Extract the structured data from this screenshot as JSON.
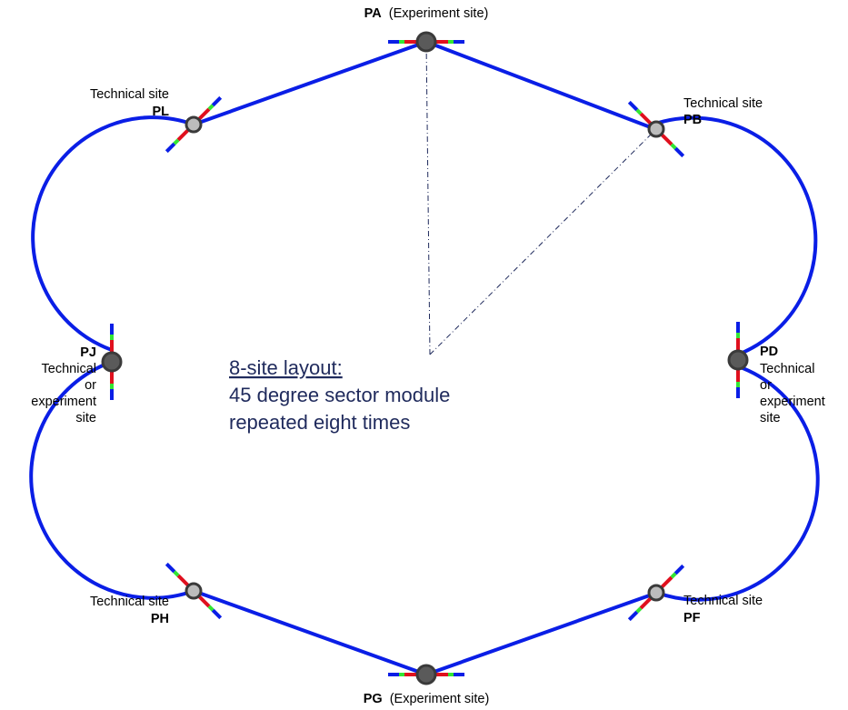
{
  "colors": {
    "ring": "#0a1ee6",
    "section_red": "#e0101e",
    "section_green": "#33e633",
    "major_site_fill": "#5a5a5a",
    "minor_site_fill": "#bcbcbc",
    "site_stroke": "#3a3a3a",
    "center_text": "#1f2a5c",
    "guide_line": "#1f2a5c"
  },
  "center_note": {
    "title": "8-site layout:",
    "line1": "45 degree sector module",
    "line2": "repeated eight times"
  },
  "sites": [
    {
      "id": "PA",
      "kind": "major",
      "code": "PA",
      "desc": "(Experiment site)"
    },
    {
      "id": "PB",
      "kind": "minor",
      "code": "PB",
      "desc": "Technical site"
    },
    {
      "id": "PD",
      "kind": "major",
      "code": "PD",
      "desc_lines": [
        "Technical",
        "or",
        "experiment",
        "site"
      ]
    },
    {
      "id": "PF",
      "kind": "minor",
      "code": "PF",
      "desc": "Technical site"
    },
    {
      "id": "PG",
      "kind": "major",
      "code": "PG",
      "desc": "(Experiment site)"
    },
    {
      "id": "PH",
      "kind": "minor",
      "code": "PH",
      "desc": "Technical site"
    },
    {
      "id": "PJ",
      "kind": "major",
      "code": "PJ",
      "desc_lines": [
        "Technical",
        "or",
        "experiment",
        "site"
      ]
    },
    {
      "id": "PL",
      "kind": "minor",
      "code": "PL",
      "desc": "Technical site"
    }
  ]
}
